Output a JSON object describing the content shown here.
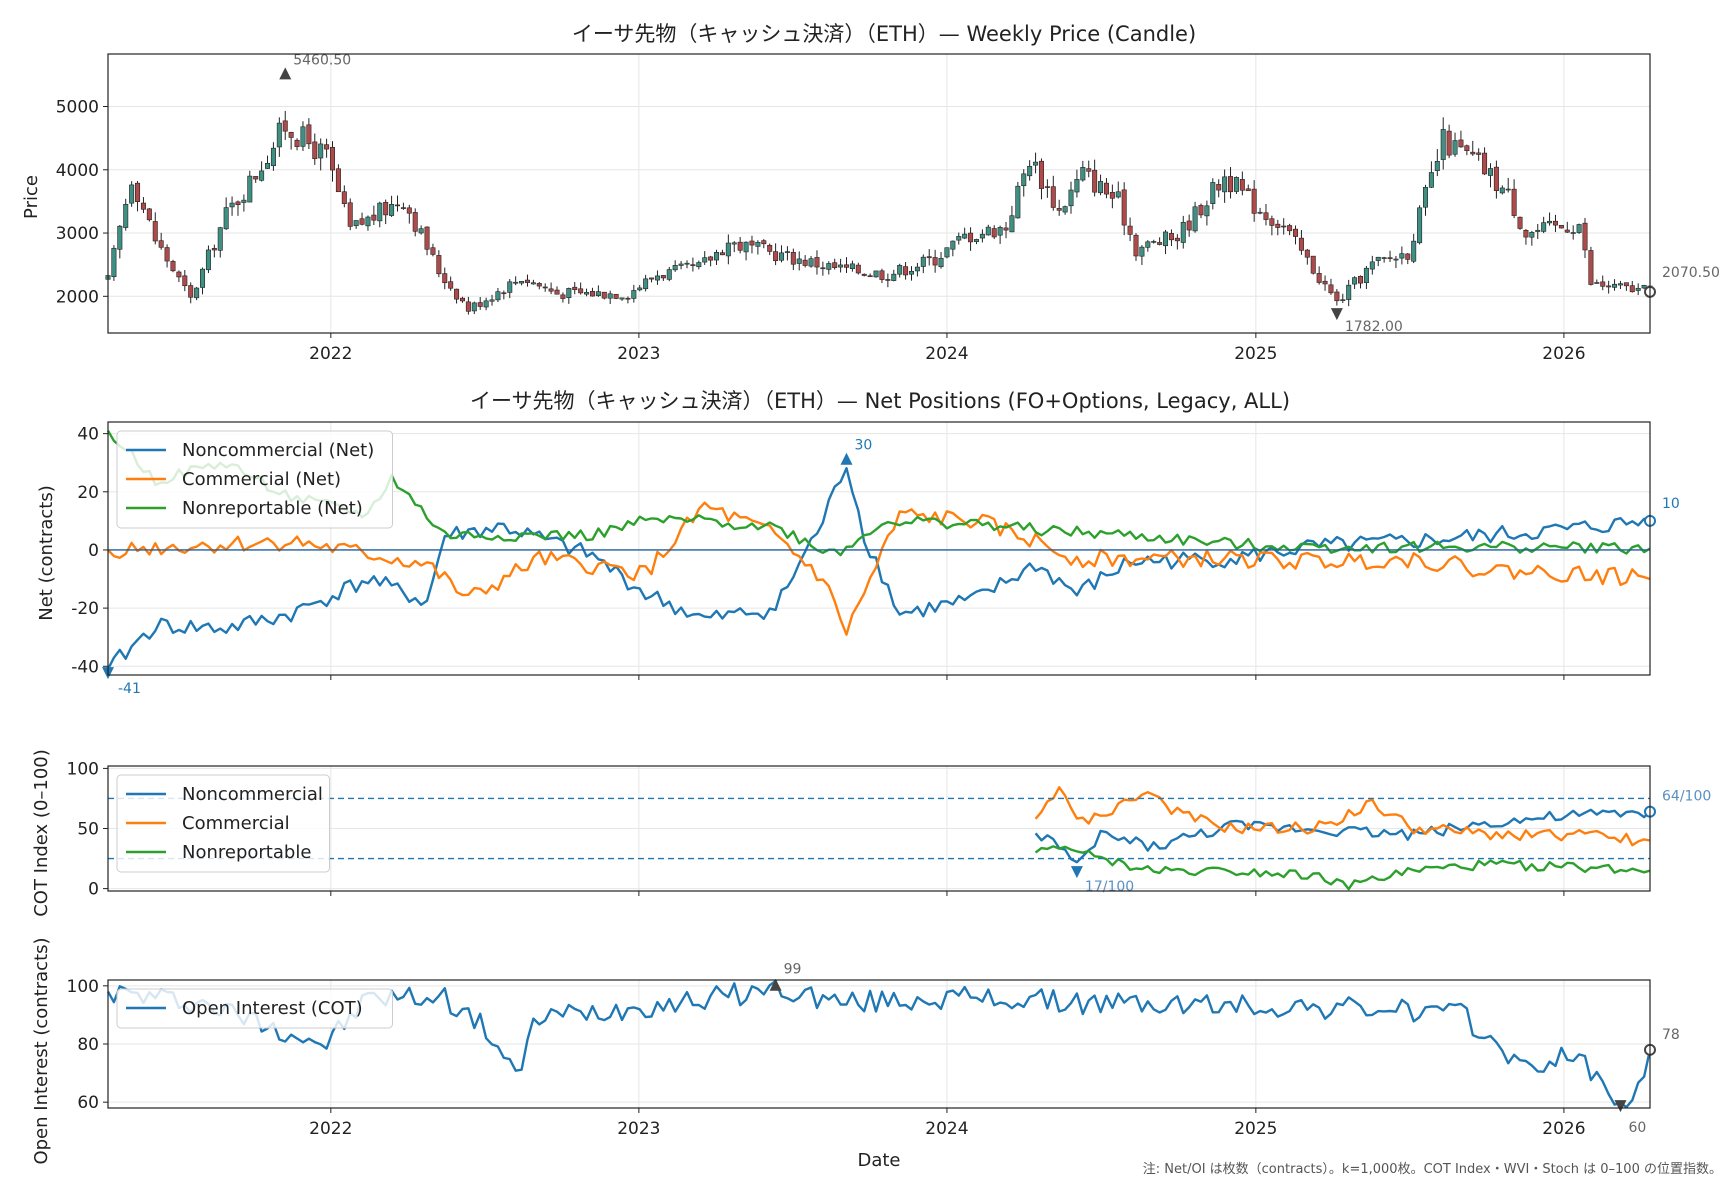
{
  "chart_data": [
    {
      "type": "candlestick",
      "title": "イーサ先物（キャッシュ決済）（ETH）— Weekly Price (Candle)",
      "xlabel": "",
      "ylabel": "Price",
      "xlim": [
        "2021-04-12",
        "2026-04-13"
      ],
      "ylim": [
        1420,
        5830
      ],
      "yticks": [
        2000,
        3000,
        4000,
        5000
      ],
      "xticks": [
        "2022",
        "2023",
        "2024",
        "2025",
        "2026"
      ],
      "grid": true,
      "up_color": "#3f8f83",
      "down_color": "#b04a4a",
      "annotations": [
        {
          "label": "5460.50",
          "x": "2021-11-08",
          "y": 5460.5,
          "kind": "max"
        },
        {
          "label": "1782.00",
          "x": "2025-04-07",
          "y": 1782.0,
          "kind": "min"
        },
        {
          "label": "2070.50",
          "x": "2026-04-13",
          "y": 2070.5,
          "kind": "last"
        }
      ],
      "anchors": [
        [
          "2021-04-12",
          2250
        ],
        [
          "2021-05-10",
          3900
        ],
        [
          "2021-06-07",
          2900
        ],
        [
          "2021-07-19",
          1950
        ],
        [
          "2021-08-30",
          3300
        ],
        [
          "2021-09-27",
          3800
        ],
        [
          "2021-11-08",
          4700
        ],
        [
          "2021-12-27",
          4200
        ],
        [
          "2022-01-24",
          3050
        ],
        [
          "2022-03-28",
          3550
        ],
        [
          "2022-05-09",
          2400
        ],
        [
          "2022-06-13",
          1800
        ],
        [
          "2022-08-15",
          2300
        ],
        [
          "2022-09-26",
          2050
        ],
        [
          "2022-11-07",
          2050
        ],
        [
          "2022-12-19",
          2050
        ],
        [
          "2023-01-23",
          2350
        ],
        [
          "2023-03-13",
          2450
        ],
        [
          "2023-04-17",
          2850
        ],
        [
          "2023-06-19",
          2650
        ],
        [
          "2023-08-21",
          2450
        ],
        [
          "2023-10-23",
          2350
        ],
        [
          "2023-12-18",
          2600
        ],
        [
          "2024-01-22",
          2950
        ],
        [
          "2024-03-11",
          3100
        ],
        [
          "2024-04-08",
          4200
        ],
        [
          "2024-05-13",
          3350
        ],
        [
          "2024-06-10",
          3950
        ],
        [
          "2024-07-22",
          3500
        ],
        [
          "2024-08-12",
          2750
        ],
        [
          "2024-09-30",
          2950
        ],
        [
          "2024-11-25",
          3900
        ],
        [
          "2024-12-30",
          3450
        ],
        [
          "2025-02-03",
          3100
        ],
        [
          "2025-04-07",
          1900
        ],
        [
          "2025-05-19",
          2500
        ],
        [
          "2025-06-30",
          2700
        ],
        [
          "2025-08-11",
          4450
        ],
        [
          "2025-09-22",
          4100
        ],
        [
          "2025-10-27",
          3600
        ],
        [
          "2025-11-17",
          3000
        ],
        [
          "2026-01-19",
          3150
        ],
        [
          "2026-02-02",
          2200
        ],
        [
          "2026-04-13",
          2070
        ]
      ]
    },
    {
      "type": "line",
      "title": "イーサ先物（キャッシュ決済）（ETH）— Net Positions (FO+Options, Legacy, ALL)",
      "xlabel": "",
      "ylabel": "Net (contracts)",
      "xlim": [
        "2021-04-12",
        "2026-04-13"
      ],
      "ylim": [
        -43,
        44
      ],
      "yticks": [
        -40,
        -20,
        0,
        20,
        40
      ],
      "grid": true,
      "legend": "top-left",
      "series": [
        {
          "name": "Noncommercial (Net)",
          "color": "#1f77b4",
          "points": [
            [
              "2021-04-12",
              -41
            ],
            [
              "2021-06-07",
              -26
            ],
            [
              "2021-08-30",
              -27
            ],
            [
              "2021-11-15",
              -22
            ],
            [
              "2022-02-14",
              -10
            ],
            [
              "2022-04-25",
              -18
            ],
            [
              "2022-05-16",
              5
            ],
            [
              "2022-07-25",
              8
            ],
            [
              "2022-11-07",
              -2
            ],
            [
              "2023-01-09",
              -15
            ],
            [
              "2023-03-20",
              -24
            ],
            [
              "2023-06-12",
              -20
            ],
            [
              "2023-08-07",
              10
            ],
            [
              "2023-09-04",
              30
            ],
            [
              "2023-09-25",
              5
            ],
            [
              "2023-11-06",
              -22
            ],
            [
              "2024-02-05",
              -17
            ],
            [
              "2024-04-15",
              -5
            ],
            [
              "2024-06-03",
              -15
            ],
            [
              "2024-08-05",
              -4
            ],
            [
              "2024-12-02",
              -3
            ],
            [
              "2025-03-10",
              1
            ],
            [
              "2025-07-07",
              3
            ],
            [
              "2025-10-06",
              5
            ],
            [
              "2026-01-05",
              7
            ],
            [
              "2026-04-13",
              10
            ]
          ],
          "min": {
            "label": "-41",
            "x": "2021-04-12",
            "y": -41
          },
          "max": {
            "label": "30",
            "x": "2023-09-04",
            "y": 30
          },
          "last": {
            "label": "10",
            "x": "2026-04-13",
            "y": 10
          }
        },
        {
          "name": "Commercial (Net)",
          "color": "#ff7f0e",
          "points": [
            [
              "2021-04-12",
              0
            ],
            [
              "2021-11-15",
              3
            ],
            [
              "2022-04-25",
              -5
            ],
            [
              "2022-06-13",
              -17
            ],
            [
              "2022-09-05",
              -3
            ],
            [
              "2023-01-09",
              -8
            ],
            [
              "2023-03-20",
              15
            ],
            [
              "2023-06-12",
              5
            ],
            [
              "2023-08-07",
              -10
            ],
            [
              "2023-09-04",
              -28
            ],
            [
              "2023-09-25",
              -15
            ],
            [
              "2023-11-06",
              12
            ],
            [
              "2024-02-05",
              10
            ],
            [
              "2024-04-15",
              3
            ],
            [
              "2024-06-03",
              -3
            ],
            [
              "2024-08-05",
              -3
            ],
            [
              "2024-12-02",
              -3
            ],
            [
              "2025-03-10",
              -4
            ],
            [
              "2025-07-07",
              -3
            ],
            [
              "2025-10-06",
              -7
            ],
            [
              "2026-01-05",
              -8
            ],
            [
              "2026-04-13",
              -10
            ]
          ]
        },
        {
          "name": "Nonreportable (Net)",
          "color": "#2ca02c",
          "points": [
            [
              "2021-04-12",
              41
            ],
            [
              "2021-06-07",
              24
            ],
            [
              "2021-08-30",
              30
            ],
            [
              "2021-11-15",
              18
            ],
            [
              "2022-02-14",
              12
            ],
            [
              "2022-03-14",
              25
            ],
            [
              "2022-05-16",
              5
            ],
            [
              "2022-07-25",
              5
            ],
            [
              "2022-11-07",
              5
            ],
            [
              "2023-01-09",
              10
            ],
            [
              "2023-03-20",
              10
            ],
            [
              "2023-06-12",
              8
            ],
            [
              "2023-08-07",
              0
            ],
            [
              "2023-09-04",
              0
            ],
            [
              "2023-10-16",
              10
            ],
            [
              "2024-02-05",
              9
            ],
            [
              "2024-04-15",
              7
            ],
            [
              "2024-06-03",
              6
            ],
            [
              "2024-08-05",
              5
            ],
            [
              "2024-12-02",
              2
            ],
            [
              "2025-03-10",
              1
            ],
            [
              "2025-07-07",
              1
            ],
            [
              "2025-10-06",
              1
            ],
            [
              "2026-01-05",
              1
            ],
            [
              "2026-04-13",
              0.5
            ]
          ]
        }
      ]
    },
    {
      "type": "line",
      "title": "",
      "xlabel": "",
      "ylabel": "COT Index (0–100)",
      "xlim": [
        "2021-04-12",
        "2026-04-13"
      ],
      "ylim": [
        -2,
        102
      ],
      "yticks": [
        0,
        50,
        100
      ],
      "reference_lines": [
        25,
        75
      ],
      "grid": true,
      "legend": "top-left",
      "series": [
        {
          "name": "Noncommercial",
          "color": "#1f77b4",
          "points": [
            [
              "2024-04-15",
              46
            ],
            [
              "2024-05-06",
              40
            ],
            [
              "2024-06-03",
              17
            ],
            [
              "2024-07-01",
              45
            ],
            [
              "2024-09-02",
              35
            ],
            [
              "2024-12-02",
              52
            ],
            [
              "2025-03-10",
              50
            ],
            [
              "2025-07-07",
              45
            ],
            [
              "2025-10-06",
              55
            ],
            [
              "2026-01-05",
              60
            ],
            [
              "2026-04-13",
              64
            ]
          ],
          "min": {
            "label": "17/100",
            "x": "2024-06-03",
            "y": 17
          },
          "last": {
            "label": "64/100",
            "x": "2026-04-13",
            "y": 64
          }
        },
        {
          "name": "Commercial",
          "color": "#ff7f0e",
          "points": [
            [
              "2024-04-15",
              58
            ],
            [
              "2024-05-13",
              80
            ],
            [
              "2024-06-10",
              55
            ],
            [
              "2024-08-26",
              80
            ],
            [
              "2024-10-07",
              60
            ],
            [
              "2024-12-02",
              50
            ],
            [
              "2025-03-10",
              50
            ],
            [
              "2025-05-19",
              70
            ],
            [
              "2025-07-07",
              50
            ],
            [
              "2025-10-06",
              45
            ],
            [
              "2026-01-05",
              45
            ],
            [
              "2026-04-13",
              40
            ]
          ]
        },
        {
          "name": "Nonreportable",
          "color": "#2ca02c",
          "points": [
            [
              "2024-04-15",
              30
            ],
            [
              "2024-05-27",
              35
            ],
            [
              "2024-06-24",
              25
            ],
            [
              "2024-09-02",
              15
            ],
            [
              "2024-12-02",
              15
            ],
            [
              "2025-03-10",
              12
            ],
            [
              "2025-04-14",
              2
            ],
            [
              "2025-07-07",
              15
            ],
            [
              "2025-10-06",
              20
            ],
            [
              "2026-01-05",
              18
            ],
            [
              "2026-04-13",
              15
            ]
          ]
        }
      ]
    },
    {
      "type": "line",
      "title": "",
      "xlabel": "Date",
      "ylabel": "Open Interest (contracts)",
      "xlim": [
        "2021-04-12",
        "2026-04-13"
      ],
      "ylim": [
        58,
        102
      ],
      "yticks": [
        60,
        80,
        100
      ],
      "xticks": [
        "2022",
        "2023",
        "2024",
        "2025",
        "2026"
      ],
      "grid": true,
      "legend": "top-left",
      "series": [
        {
          "name": "Open Interest (COT)",
          "color": "#1f77b4",
          "points": [
            [
              "2021-04-12",
              98
            ],
            [
              "2021-08-02",
              94
            ],
            [
              "2021-12-27",
              80
            ],
            [
              "2022-02-14",
              96
            ],
            [
              "2022-05-16",
              96
            ],
            [
              "2022-07-04",
              85
            ],
            [
              "2022-08-15",
              68
            ],
            [
              "2022-08-29",
              89
            ],
            [
              "2022-12-05",
              92
            ],
            [
              "2023-03-06",
              95
            ],
            [
              "2023-06-12",
              99
            ],
            [
              "2023-09-04",
              94
            ],
            [
              "2024-01-01",
              96
            ],
            [
              "2024-07-01",
              94
            ],
            [
              "2025-01-06",
              93
            ],
            [
              "2025-06-09",
              92
            ],
            [
              "2025-09-01",
              90
            ],
            [
              "2025-11-24",
              70
            ],
            [
              "2026-01-05",
              78
            ],
            [
              "2026-03-09",
              60
            ],
            [
              "2026-04-06",
              65
            ],
            [
              "2026-04-13",
              78
            ]
          ],
          "max": {
            "label": "99",
            "x": "2023-06-12",
            "y": 99
          },
          "min": {
            "label": "60",
            "x": "2026-03-09",
            "y": 60
          },
          "last": {
            "label": "78",
            "x": "2026-04-13",
            "y": 78
          }
        }
      ]
    }
  ],
  "note": "注: Net/OI は枚数（contracts）。k=1,000枚。COT Index・WVI・Stoch は 0–100 の位置指数。"
}
